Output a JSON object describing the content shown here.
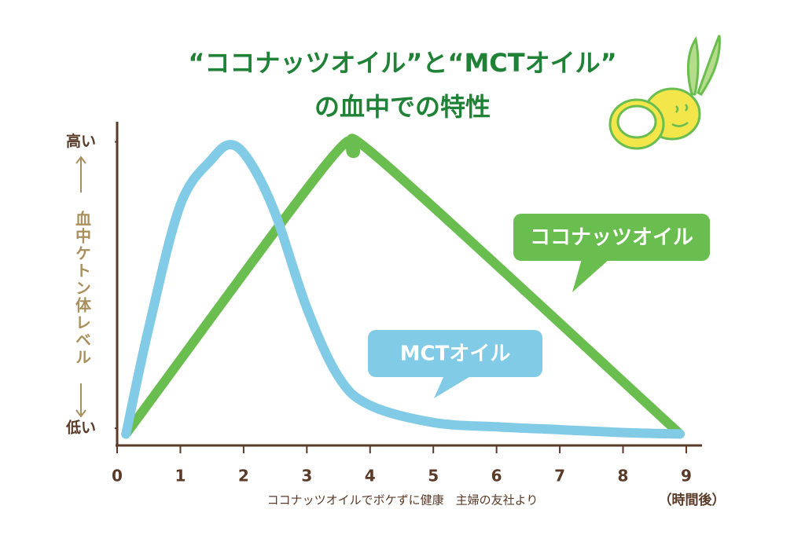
{
  "chart_data": {
    "type": "line",
    "title": "“ココナッツオイル”と“MCTオイル”",
    "subtitle": "の血中での特性",
    "y_label": "血中ケトン体レベル",
    "x_label": "（時間後）",
    "source": "ココナッツオイルでボケずに健康　主婦の友社より",
    "xlim": [
      0,
      9.25
    ],
    "xticks": [
      0,
      1,
      2,
      3,
      4,
      5,
      6,
      7,
      8,
      9
    ],
    "ylim": [
      -6,
      107
    ],
    "yticks": [
      {
        "value": 0,
        "label": "低い"
      },
      {
        "value": 100,
        "label": "高い"
      }
    ],
    "series": [
      {
        "name": "MCTオイル",
        "color": "#82cbe6",
        "x": [
          0.14,
          0.5,
          1.0,
          1.5,
          1.8,
          2.1,
          2.5,
          3.0,
          3.5,
          4.0,
          5.0,
          6.0,
          7.0,
          8.0,
          8.9
        ],
        "values": [
          -2,
          35,
          78,
          94,
          99,
          93,
          75,
          42,
          18,
          8,
          2,
          0.5,
          -0.5,
          -1.5,
          -2
        ]
      },
      {
        "name": "ココナッツオイル",
        "color": "#6abd4f",
        "x": [
          0.14,
          3.3,
          3.74,
          4.2,
          8.9
        ],
        "values": [
          -2,
          92,
          96,
          93,
          -2
        ]
      }
    ]
  }
}
